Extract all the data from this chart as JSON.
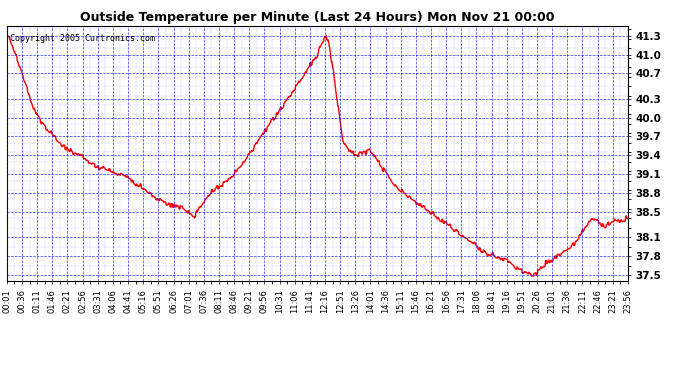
{
  "title": "Outside Temperature per Minute (Last 24 Hours) Mon Nov 21 00:00",
  "copyright": "Copyright 2005 Curtronics.com",
  "background_color": "#ffffff",
  "plot_background": "#ffffff",
  "grid_color": "blue",
  "line_color": "red",
  "line_width": 1.0,
  "ylim": [
    37.4,
    41.45
  ],
  "yticks": [
    37.5,
    37.8,
    38.1,
    38.5,
    38.8,
    39.1,
    39.4,
    39.7,
    40.0,
    40.3,
    40.7,
    41.0,
    41.3
  ],
  "xtick_labels": [
    "00:01",
    "00:36",
    "01:11",
    "01:46",
    "02:21",
    "02:56",
    "03:31",
    "04:06",
    "04:41",
    "05:16",
    "05:51",
    "06:26",
    "07:01",
    "07:36",
    "08:11",
    "08:46",
    "09:21",
    "09:56",
    "10:31",
    "11:06",
    "11:41",
    "12:16",
    "12:51",
    "13:26",
    "14:01",
    "14:36",
    "15:11",
    "15:46",
    "16:21",
    "16:56",
    "17:31",
    "18:06",
    "18:41",
    "19:16",
    "19:51",
    "20:26",
    "21:01",
    "21:36",
    "22:11",
    "22:46",
    "23:21",
    "23:56"
  ],
  "num_points": 1440,
  "control_points": [
    [
      0,
      41.3
    ],
    [
      5,
      41.28
    ],
    [
      15,
      41.1
    ],
    [
      30,
      40.8
    ],
    [
      45,
      40.5
    ],
    [
      60,
      40.2
    ],
    [
      70,
      40.05
    ],
    [
      75,
      40.0
    ],
    [
      80,
      39.95
    ],
    [
      85,
      39.9
    ],
    [
      90,
      39.85
    ],
    [
      95,
      39.8
    ],
    [
      100,
      39.78
    ],
    [
      105,
      39.75
    ],
    [
      108,
      39.72
    ],
    [
      112,
      39.68
    ],
    [
      115,
      39.65
    ],
    [
      118,
      39.62
    ],
    [
      122,
      39.6
    ],
    [
      130,
      39.55
    ],
    [
      140,
      39.5
    ],
    [
      150,
      39.45
    ],
    [
      160,
      39.42
    ],
    [
      170,
      39.4
    ],
    [
      175,
      39.38
    ],
    [
      180,
      39.35
    ],
    [
      190,
      39.3
    ],
    [
      200,
      39.25
    ],
    [
      210,
      39.22
    ],
    [
      220,
      39.2
    ],
    [
      230,
      39.18
    ],
    [
      240,
      39.15
    ],
    [
      250,
      39.12
    ],
    [
      260,
      39.1
    ],
    [
      270,
      39.08
    ],
    [
      280,
      39.05
    ],
    [
      285,
      39.02
    ],
    [
      290,
      39.0
    ],
    [
      295,
      38.98
    ],
    [
      300,
      38.95
    ],
    [
      305,
      38.92
    ],
    [
      310,
      38.9
    ],
    [
      315,
      38.88
    ],
    [
      320,
      38.85
    ],
    [
      325,
      38.82
    ],
    [
      330,
      38.8
    ],
    [
      335,
      38.78
    ],
    [
      340,
      38.75
    ],
    [
      345,
      38.72
    ],
    [
      350,
      38.7
    ],
    [
      360,
      38.68
    ],
    [
      370,
      38.65
    ],
    [
      380,
      38.62
    ],
    [
      390,
      38.6
    ],
    [
      400,
      38.58
    ],
    [
      410,
      38.55
    ],
    [
      415,
      38.52
    ],
    [
      420,
      38.5
    ],
    [
      425,
      38.48
    ],
    [
      430,
      38.45
    ],
    [
      435,
      38.43
    ],
    [
      440,
      38.5
    ],
    [
      445,
      38.55
    ],
    [
      450,
      38.6
    ],
    [
      455,
      38.65
    ],
    [
      460,
      38.7
    ],
    [
      465,
      38.75
    ],
    [
      470,
      38.8
    ],
    [
      475,
      38.82
    ],
    [
      480,
      38.85
    ],
    [
      485,
      38.88
    ],
    [
      490,
      38.9
    ],
    [
      495,
      38.92
    ],
    [
      500,
      38.95
    ],
    [
      505,
      38.98
    ],
    [
      510,
      39.0
    ],
    [
      515,
      39.03
    ],
    [
      520,
      39.06
    ],
    [
      525,
      39.1
    ],
    [
      530,
      39.14
    ],
    [
      535,
      39.18
    ],
    [
      540,
      39.22
    ],
    [
      545,
      39.26
    ],
    [
      550,
      39.3
    ],
    [
      555,
      39.35
    ],
    [
      560,
      39.4
    ],
    [
      565,
      39.45
    ],
    [
      570,
      39.5
    ],
    [
      575,
      39.55
    ],
    [
      580,
      39.6
    ],
    [
      585,
      39.65
    ],
    [
      590,
      39.7
    ],
    [
      595,
      39.75
    ],
    [
      600,
      39.8
    ],
    [
      605,
      39.85
    ],
    [
      610,
      39.9
    ],
    [
      615,
      39.95
    ],
    [
      620,
      40.0
    ],
    [
      625,
      40.05
    ],
    [
      630,
      40.1
    ],
    [
      635,
      40.15
    ],
    [
      640,
      40.2
    ],
    [
      645,
      40.25
    ],
    [
      650,
      40.3
    ],
    [
      655,
      40.35
    ],
    [
      660,
      40.4
    ],
    [
      665,
      40.45
    ],
    [
      670,
      40.5
    ],
    [
      675,
      40.55
    ],
    [
      680,
      40.6
    ],
    [
      685,
      40.65
    ],
    [
      690,
      40.7
    ],
    [
      695,
      40.75
    ],
    [
      700,
      40.8
    ],
    [
      705,
      40.85
    ],
    [
      710,
      40.9
    ],
    [
      715,
      40.95
    ],
    [
      720,
      41.0
    ],
    [
      722,
      41.05
    ],
    [
      724,
      41.1
    ],
    [
      726,
      41.12
    ],
    [
      728,
      41.15
    ],
    [
      730,
      41.18
    ],
    [
      732,
      41.2
    ],
    [
      734,
      41.22
    ],
    [
      736,
      41.25
    ],
    [
      738,
      41.28
    ],
    [
      740,
      41.3
    ],
    [
      742,
      41.28
    ],
    [
      744,
      41.25
    ],
    [
      746,
      41.2
    ],
    [
      748,
      41.15
    ],
    [
      750,
      41.05
    ],
    [
      752,
      40.95
    ],
    [
      754,
      40.85
    ],
    [
      756,
      40.75
    ],
    [
      758,
      40.65
    ],
    [
      760,
      40.55
    ],
    [
      762,
      40.45
    ],
    [
      764,
      40.35
    ],
    [
      766,
      40.25
    ],
    [
      768,
      40.15
    ],
    [
      770,
      40.05
    ],
    [
      772,
      39.95
    ],
    [
      774,
      39.85
    ],
    [
      776,
      39.75
    ],
    [
      778,
      39.65
    ],
    [
      780,
      39.6
    ],
    [
      785,
      39.55
    ],
    [
      790,
      39.5
    ],
    [
      800,
      39.45
    ],
    [
      810,
      39.4
    ],
    [
      820,
      39.42
    ],
    [
      825,
      39.44
    ],
    [
      830,
      39.46
    ],
    [
      835,
      39.48
    ],
    [
      840,
      39.5
    ],
    [
      845,
      39.45
    ],
    [
      850,
      39.4
    ],
    [
      855,
      39.35
    ],
    [
      860,
      39.3
    ],
    [
      865,
      39.25
    ],
    [
      870,
      39.2
    ],
    [
      875,
      39.15
    ],
    [
      880,
      39.1
    ],
    [
      885,
      39.05
    ],
    [
      890,
      39.0
    ],
    [
      895,
      38.95
    ],
    [
      900,
      38.9
    ],
    [
      910,
      38.85
    ],
    [
      920,
      38.8
    ],
    [
      930,
      38.75
    ],
    [
      940,
      38.7
    ],
    [
      950,
      38.65
    ],
    [
      960,
      38.6
    ],
    [
      970,
      38.55
    ],
    [
      980,
      38.5
    ],
    [
      990,
      38.45
    ],
    [
      1000,
      38.4
    ],
    [
      1010,
      38.35
    ],
    [
      1020,
      38.3
    ],
    [
      1030,
      38.25
    ],
    [
      1040,
      38.2
    ],
    [
      1050,
      38.15
    ],
    [
      1060,
      38.1
    ],
    [
      1070,
      38.05
    ],
    [
      1080,
      38.0
    ],
    [
      1090,
      37.95
    ],
    [
      1100,
      37.9
    ],
    [
      1110,
      37.85
    ],
    [
      1120,
      37.82
    ],
    [
      1130,
      37.8
    ],
    [
      1140,
      37.78
    ],
    [
      1150,
      37.75
    ],
    [
      1160,
      37.72
    ],
    [
      1165,
      37.7
    ],
    [
      1170,
      37.68
    ],
    [
      1175,
      37.65
    ],
    [
      1180,
      37.62
    ],
    [
      1185,
      37.6
    ],
    [
      1190,
      37.58
    ],
    [
      1195,
      37.56
    ],
    [
      1200,
      37.55
    ],
    [
      1205,
      37.53
    ],
    [
      1210,
      37.52
    ],
    [
      1215,
      37.51
    ],
    [
      1220,
      37.5
    ],
    [
      1225,
      37.52
    ],
    [
      1230,
      37.55
    ],
    [
      1235,
      37.58
    ],
    [
      1240,
      37.62
    ],
    [
      1245,
      37.65
    ],
    [
      1250,
      37.68
    ],
    [
      1255,
      37.7
    ],
    [
      1260,
      37.72
    ],
    [
      1265,
      37.75
    ],
    [
      1270,
      37.78
    ],
    [
      1275,
      37.8
    ],
    [
      1280,
      37.82
    ],
    [
      1285,
      37.85
    ],
    [
      1290,
      37.88
    ],
    [
      1295,
      37.9
    ],
    [
      1300,
      37.92
    ],
    [
      1305,
      37.95
    ],
    [
      1310,
      37.98
    ],
    [
      1315,
      38.0
    ],
    [
      1320,
      38.05
    ],
    [
      1325,
      38.1
    ],
    [
      1330,
      38.15
    ],
    [
      1335,
      38.2
    ],
    [
      1340,
      38.25
    ],
    [
      1345,
      38.3
    ],
    [
      1350,
      38.35
    ],
    [
      1355,
      38.38
    ],
    [
      1360,
      38.4
    ],
    [
      1365,
      38.38
    ],
    [
      1370,
      38.35
    ],
    [
      1375,
      38.32
    ],
    [
      1380,
      38.3
    ],
    [
      1385,
      38.28
    ],
    [
      1390,
      38.3
    ],
    [
      1395,
      38.32
    ],
    [
      1400,
      38.35
    ],
    [
      1405,
      38.37
    ],
    [
      1410,
      38.38
    ],
    [
      1415,
      38.37
    ],
    [
      1420,
      38.35
    ],
    [
      1425,
      38.37
    ],
    [
      1430,
      38.38
    ],
    [
      1435,
      38.4
    ],
    [
      1439,
      38.4
    ]
  ]
}
